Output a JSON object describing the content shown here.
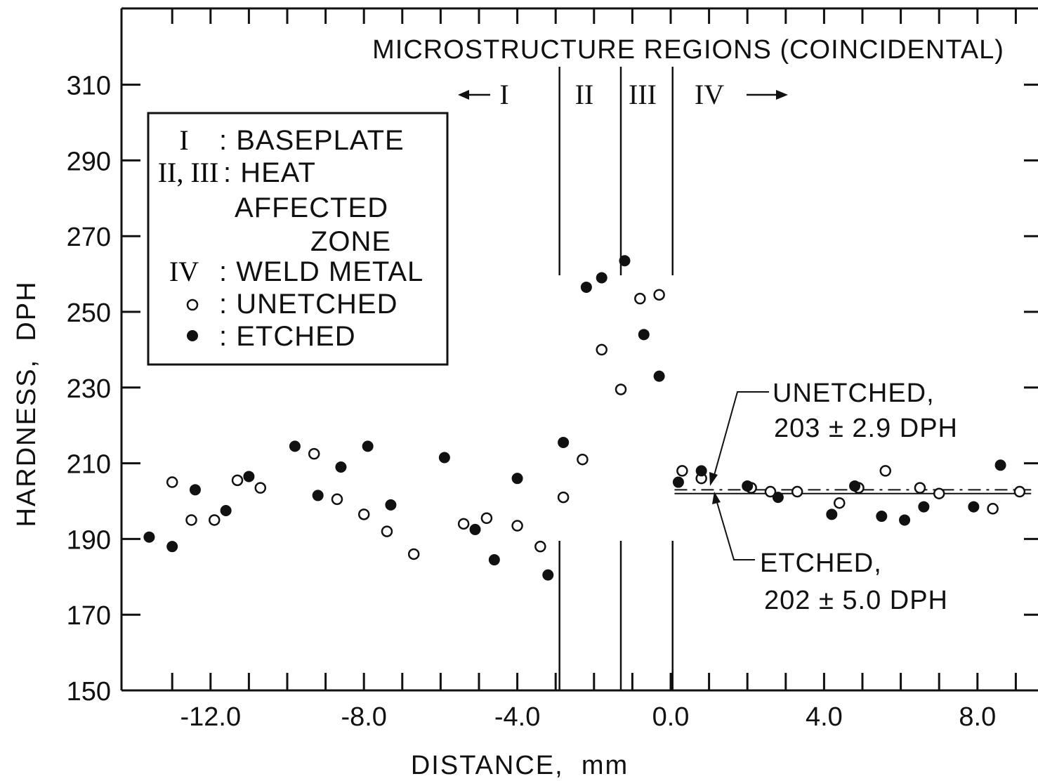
{
  "chart_data": {
    "type": "scatter",
    "title": "MICROSTRUCTURE REGIONS (COINCIDENTAL)",
    "xlabel": "DISTANCE,  mm",
    "ylabel": "HARDNESS,  DPH",
    "xlim": [
      -14.5,
      9.8
    ],
    "ylim": [
      150,
      330
    ],
    "x_ticks": [
      -12.0,
      -8.0,
      -4.0,
      0.0,
      4.0,
      8.0
    ],
    "x_tick_labels": [
      "-12.0",
      "-8.0",
      "-4.0",
      "0.0",
      "4.0",
      "8.0"
    ],
    "y_ticks": [
      150,
      170,
      190,
      210,
      230,
      250,
      270,
      290,
      310
    ],
    "y_tick_labels": [
      "150",
      "170",
      "190",
      "210",
      "230",
      "250",
      "270",
      "290",
      "310"
    ],
    "grid": false,
    "regions": [
      {
        "label": "I",
        "arrow": "←"
      },
      {
        "label": "II",
        "arrow": ""
      },
      {
        "label": "III",
        "arrow": ""
      },
      {
        "label": "IV",
        "arrow": "→"
      }
    ],
    "region_boundaries": [
      -2.9,
      -1.3,
      0.05
    ],
    "legend": {
      "placement": "top-left",
      "entries": [
        {
          "key": "I",
          "text": ": BASEPLATE"
        },
        {
          "key": "II, III",
          "text": ": HEAT"
        },
        {
          "key": "",
          "text": "AFFECTED"
        },
        {
          "key": "",
          "text": "ZONE"
        },
        {
          "key": "IV",
          "text": ": WELD METAL"
        },
        {
          "key": "○",
          "text": ": UNETCHED"
        },
        {
          "key": "●",
          "text": ": ETCHED"
        }
      ]
    },
    "series": [
      {
        "name": "UNETCHED",
        "marker": "open-circle",
        "points": [
          [
            -13.0,
            205
          ],
          [
            -12.5,
            195
          ],
          [
            -11.9,
            195
          ],
          [
            -11.3,
            205.5
          ],
          [
            -10.7,
            203.5
          ],
          [
            -9.3,
            212.5
          ],
          [
            -8.7,
            200.5
          ],
          [
            -8.0,
            196.5
          ],
          [
            -7.4,
            192
          ],
          [
            -6.7,
            186
          ],
          [
            -5.4,
            194
          ],
          [
            -4.8,
            195.5
          ],
          [
            -4.0,
            193.5
          ],
          [
            -3.4,
            188
          ],
          [
            -2.8,
            201
          ],
          [
            -2.3,
            211
          ],
          [
            -1.8,
            240
          ],
          [
            -1.3,
            229.5
          ],
          [
            -0.8,
            253.5
          ],
          [
            -0.3,
            254.5
          ],
          [
            0.3,
            208
          ],
          [
            0.8,
            206
          ],
          [
            2.1,
            203.5
          ],
          [
            2.6,
            202.5
          ],
          [
            3.3,
            202.5
          ],
          [
            4.4,
            199.5
          ],
          [
            4.9,
            203.5
          ],
          [
            5.6,
            208
          ],
          [
            6.5,
            203.5
          ],
          [
            7.0,
            202
          ],
          [
            8.4,
            198
          ],
          [
            9.1,
            202.5
          ]
        ]
      },
      {
        "name": "ETCHED",
        "marker": "filled-circle",
        "points": [
          [
            -13.6,
            190.5
          ],
          [
            -13.0,
            188
          ],
          [
            -12.4,
            203
          ],
          [
            -11.6,
            197.5
          ],
          [
            -11.0,
            206.5
          ],
          [
            -9.8,
            214.5
          ],
          [
            -9.2,
            201.5
          ],
          [
            -8.6,
            209
          ],
          [
            -7.9,
            214.5
          ],
          [
            -7.3,
            199
          ],
          [
            -5.9,
            211.5
          ],
          [
            -5.1,
            192.5
          ],
          [
            -4.6,
            184.5
          ],
          [
            -4.0,
            206
          ],
          [
            -3.2,
            180.5
          ],
          [
            -2.8,
            215.5
          ],
          [
            -2.2,
            256.5
          ],
          [
            -1.8,
            259
          ],
          [
            -1.2,
            263.5
          ],
          [
            -0.7,
            244
          ],
          [
            -0.3,
            233
          ],
          [
            0.2,
            205
          ],
          [
            0.8,
            208
          ],
          [
            2.0,
            204
          ],
          [
            2.8,
            201
          ],
          [
            4.2,
            196.5
          ],
          [
            4.8,
            204
          ],
          [
            5.5,
            196
          ],
          [
            6.1,
            195
          ],
          [
            6.6,
            198.5
          ],
          [
            7.9,
            198.5
          ],
          [
            8.6,
            209.5
          ]
        ]
      }
    ],
    "annotations": [
      {
        "text_line1": "UNETCHED,",
        "text_line2": "203 ± 2.9 DPH",
        "value": 203
      },
      {
        "text_line1": "ETCHED,",
        "text_line2": "202 ± 5.0 DPH",
        "value": 202
      }
    ],
    "average_lines": {
      "x_range": [
        0.1,
        9.4
      ]
    }
  }
}
